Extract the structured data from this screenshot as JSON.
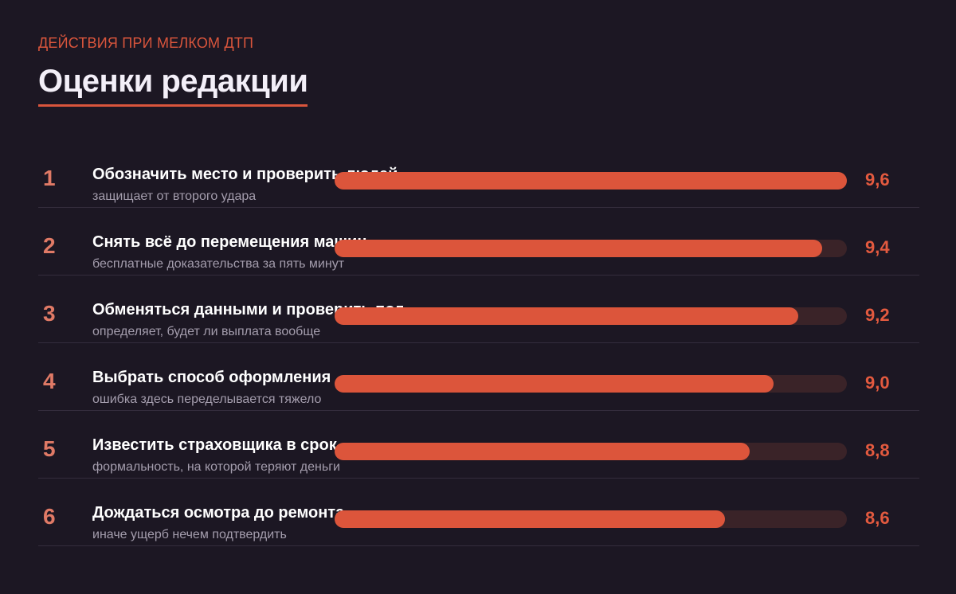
{
  "kicker": "ДЕЙСТВИЯ ПРИ МЕЛКОМ ДТП",
  "title": "Оценки редакции",
  "colors": {
    "accent": "#dc553b",
    "track": "#3a2328",
    "background": "#1c1723"
  },
  "chart_data": {
    "type": "bar",
    "orientation": "horizontal",
    "xlim": [
      5.4,
      9.6
    ],
    "items": [
      {
        "rank": "1",
        "label": "Обозначить место и проверить людей",
        "sub": "защищает от второго удара",
        "value": 9.6,
        "value_label": "9,6"
      },
      {
        "rank": "2",
        "label": "Снять всё до перемещения машин",
        "sub": "бесплатные доказательства за пять минут",
        "value": 9.4,
        "value_label": "9,4"
      },
      {
        "rank": "3",
        "label": "Обменяться данными и проверить полис",
        "sub": "определяет, будет ли выплата вообще",
        "value": 9.2,
        "value_label": "9,2"
      },
      {
        "rank": "4",
        "label": "Выбрать способ оформления",
        "sub": "ошибка здесь переделывается тяжело",
        "value": 9.0,
        "value_label": "9,0"
      },
      {
        "rank": "5",
        "label": "Известить страховщика в срок",
        "sub": "формальность, на которой теряют деньги",
        "value": 8.8,
        "value_label": "8,8"
      },
      {
        "rank": "6",
        "label": "Дождаться осмотра до ремонта",
        "sub": "иначе ущерб нечем подтвердить",
        "value": 8.6,
        "value_label": "8,6"
      }
    ]
  }
}
